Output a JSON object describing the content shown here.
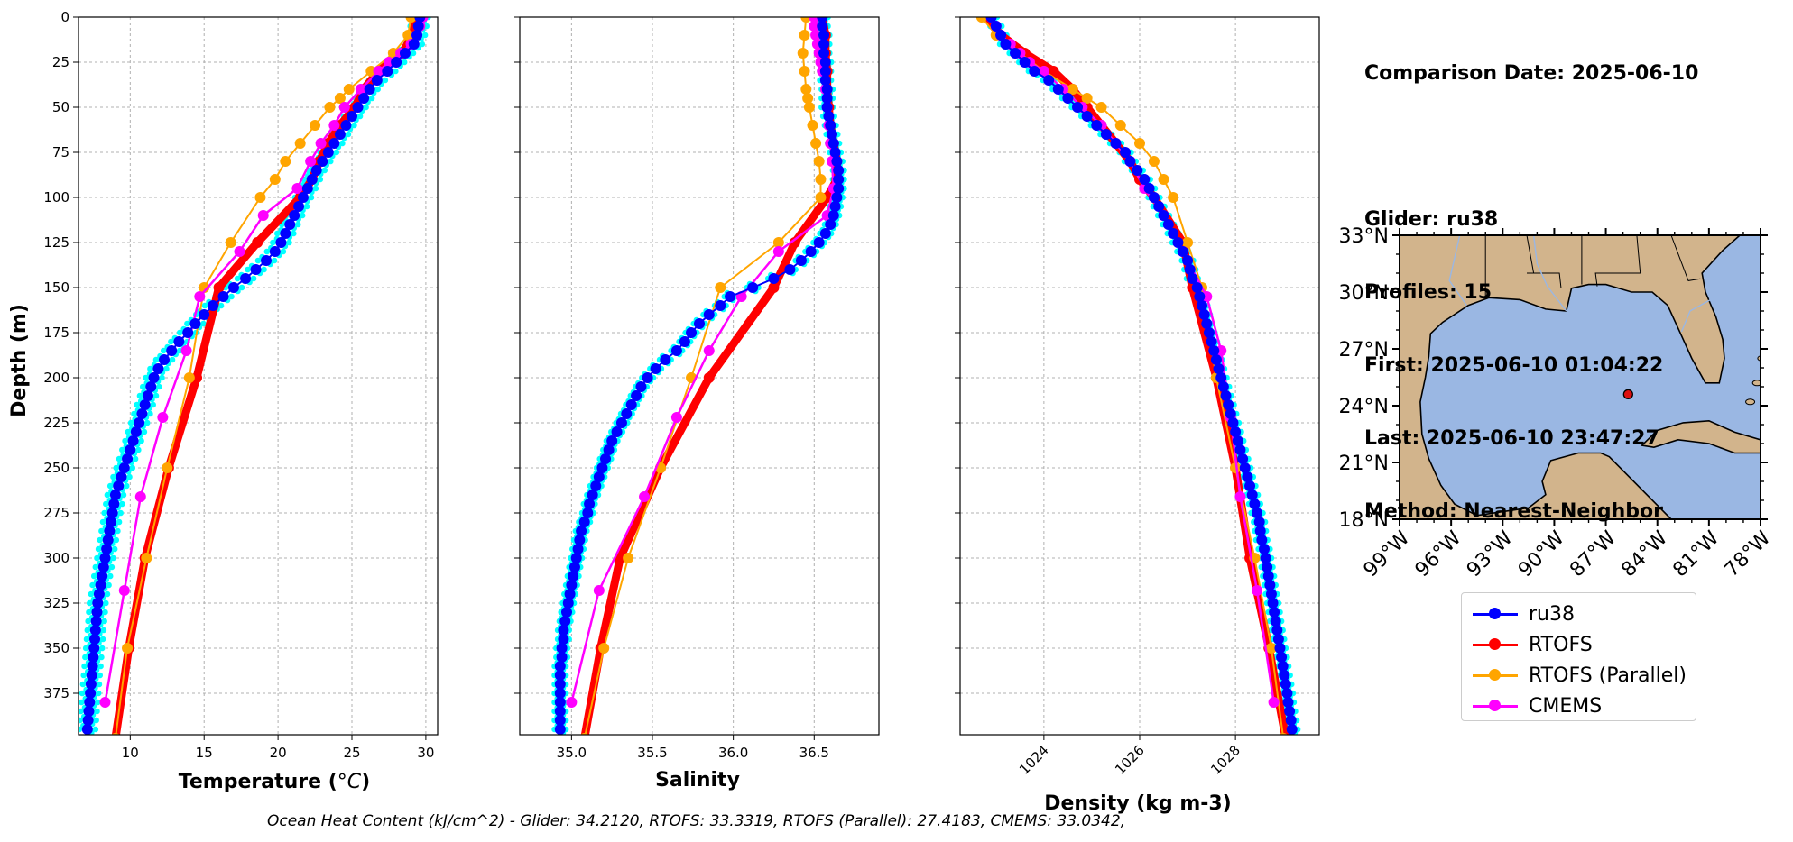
{
  "panels": [
    {
      "id": "temp",
      "xlabel": "Temperature (",
      "xlabel_unit": "°C",
      "xlabel_end": ")",
      "xlim": [
        6.5,
        30.8
      ],
      "xticks": [
        10,
        15,
        20,
        25,
        30
      ],
      "xtick_labels": [
        "10",
        "15",
        "20",
        "25",
        "30"
      ]
    },
    {
      "id": "sal",
      "xlabel": "Salinity",
      "xlim": [
        34.68,
        36.9
      ],
      "xticks": [
        35.0,
        35.5,
        36.0,
        36.5
      ],
      "xtick_labels": [
        "35.0",
        "35.5",
        "36.0",
        "36.5"
      ]
    },
    {
      "id": "dens",
      "xlabel": "Density (kg m-3)",
      "xlim": [
        1022.25,
        1029.75
      ],
      "xticks": [
        1024,
        1026,
        1028
      ],
      "xtick_labels": [
        "1024",
        "1026",
        "1028"
      ]
    }
  ],
  "ylabel": "Depth (m)",
  "ylim": [
    398,
    0
  ],
  "yticks": [
    0,
    25,
    50,
    75,
    100,
    125,
    150,
    175,
    200,
    225,
    250,
    275,
    300,
    325,
    350,
    375
  ],
  "ytick_labels": [
    "0",
    "25",
    "50",
    "75",
    "100",
    "125",
    "150",
    "175",
    "200",
    "225",
    "250",
    "275",
    "300",
    "325",
    "350",
    "375"
  ],
  "info": {
    "line1": "Comparison Date: 2025-06-10",
    "line2": "Glider: ru38",
    "line3": "Profiles: 15",
    "line4": "First: 2025-06-10 01:04:22",
    "line5": "Last: 2025-06-10 23:47:27",
    "line6": "Method: Nearest-Neighbor"
  },
  "map": {
    "lon_ticks": [
      "99°W",
      "96°W",
      "93°W",
      "90°W",
      "87°W",
      "84°W",
      "81°W",
      "78°W"
    ],
    "lat_ticks": [
      "33°N",
      "30°N",
      "27°N",
      "24°N",
      "21°N",
      "18°N"
    ],
    "lon_range": [
      -99,
      -78
    ],
    "lat_range": [
      18,
      33
    ],
    "glider_location": {
      "lon": -85.7,
      "lat": 24.6
    },
    "land_color": "#d2b48c",
    "ocean_color": "#9ab7e3"
  },
  "legend": [
    {
      "label": "ru38",
      "color": "#0000ff"
    },
    {
      "label": "RTOFS",
      "color": "#ff0000"
    },
    {
      "label": "RTOFS (Parallel)",
      "color": "#ffa500"
    },
    {
      "label": "CMEMS",
      "color": "#ff00ff"
    }
  ],
  "footer": "Ocean Heat Content (kJ/cm^2) - Glider: 34.2120,  RTOFS: 33.3319,  RTOFS (Parallel): 27.4183,  CMEMS: 33.0342,",
  "colors": {
    "glider_raw": "#00ffff",
    "glider_mean": "#0000ff",
    "rtofs": "#ff0000",
    "rtofs_parallel": "#ffa500",
    "cmems": "#ff00ff"
  },
  "chart_data": {
    "type": "line",
    "y_axis": "Depth (m)",
    "series": [
      {
        "name": "ru38",
        "depth": [
          0,
          5,
          10,
          15,
          20,
          25,
          30,
          35,
          40,
          45,
          50,
          55,
          60,
          65,
          70,
          75,
          80,
          85,
          90,
          95,
          100,
          105,
          110,
          115,
          120,
          125,
          130,
          135,
          140,
          145,
          150,
          155,
          160,
          165,
          170,
          175,
          180,
          185,
          190,
          195,
          200,
          205,
          210,
          215,
          220,
          225,
          230,
          235,
          240,
          245,
          250,
          255,
          260,
          265,
          270,
          275,
          280,
          285,
          290,
          295,
          300,
          305,
          310,
          315,
          320,
          325,
          330,
          335,
          340,
          345,
          350,
          355,
          360,
          365,
          370,
          375,
          380,
          385,
          390,
          395
        ],
        "temperature": [
          29.6,
          29.5,
          29.4,
          29.2,
          28.6,
          28.0,
          27.4,
          26.7,
          26.2,
          25.8,
          25.4,
          25.0,
          24.6,
          24.2,
          23.8,
          23.4,
          23.0,
          22.6,
          22.3,
          22.0,
          21.7,
          21.4,
          21.1,
          20.8,
          20.5,
          20.2,
          19.8,
          19.2,
          18.5,
          17.8,
          17.0,
          16.3,
          15.6,
          15.0,
          14.4,
          13.9,
          13.3,
          12.8,
          12.3,
          11.9,
          11.6,
          11.4,
          11.2,
          11.0,
          10.8,
          10.6,
          10.4,
          10.2,
          10.0,
          9.8,
          9.6,
          9.4,
          9.2,
          9.0,
          8.9,
          8.8,
          8.7,
          8.6,
          8.5,
          8.4,
          8.3,
          8.2,
          8.1,
          8.0,
          7.9,
          7.8,
          7.75,
          7.7,
          7.65,
          7.6,
          7.55,
          7.5,
          7.45,
          7.4,
          7.35,
          7.3,
          7.25,
          7.2,
          7.15,
          7.1
        ],
        "salinity": [
          36.55,
          36.55,
          36.56,
          36.56,
          36.56,
          36.57,
          36.57,
          36.57,
          36.58,
          36.58,
          36.58,
          36.59,
          36.6,
          36.61,
          36.62,
          36.63,
          36.64,
          36.65,
          36.65,
          36.65,
          36.64,
          36.63,
          36.62,
          36.6,
          36.57,
          36.53,
          36.48,
          36.42,
          36.35,
          36.25,
          36.12,
          35.98,
          35.92,
          35.85,
          35.79,
          35.74,
          35.7,
          35.65,
          35.58,
          35.52,
          35.47,
          35.43,
          35.4,
          35.37,
          35.34,
          35.31,
          35.28,
          35.25,
          35.23,
          35.21,
          35.19,
          35.17,
          35.15,
          35.13,
          35.11,
          35.1,
          35.08,
          35.06,
          35.05,
          35.04,
          35.03,
          35.02,
          35.01,
          35.0,
          34.99,
          34.98,
          34.97,
          34.96,
          34.95,
          34.95,
          34.94,
          34.94,
          34.93,
          34.93,
          34.93,
          34.93,
          34.93,
          34.93,
          34.93,
          34.93
        ],
        "density": [
          1022.9,
          1023.0,
          1023.1,
          1023.2,
          1023.4,
          1023.6,
          1023.8,
          1024.1,
          1024.3,
          1024.5,
          1024.7,
          1024.9,
          1025.1,
          1025.3,
          1025.5,
          1025.7,
          1025.8,
          1025.95,
          1026.1,
          1026.2,
          1026.3,
          1026.4,
          1026.5,
          1026.6,
          1026.7,
          1026.8,
          1026.9,
          1027.0,
          1027.05,
          1027.1,
          1027.2,
          1027.25,
          1027.3,
          1027.35,
          1027.4,
          1027.45,
          1027.5,
          1027.55,
          1027.6,
          1027.65,
          1027.7,
          1027.75,
          1027.8,
          1027.85,
          1027.9,
          1027.95,
          1028.0,
          1028.05,
          1028.1,
          1028.15,
          1028.2,
          1028.25,
          1028.3,
          1028.35,
          1028.4,
          1028.45,
          1028.5,
          1028.52,
          1028.55,
          1028.6,
          1028.63,
          1028.66,
          1028.69,
          1028.72,
          1028.75,
          1028.78,
          1028.81,
          1028.84,
          1028.87,
          1028.9,
          1028.93,
          1028.96,
          1028.99,
          1029.02,
          1029.05,
          1029.08,
          1029.1,
          1029.13,
          1029.16,
          1029.18
        ]
      },
      {
        "name": "RTOFS",
        "depth": [
          0,
          10,
          20,
          30,
          40,
          50,
          60,
          70,
          80,
          90,
          100,
          125,
          150,
          200,
          250,
          300,
          350,
          400
        ],
        "temperature": [
          29.3,
          29.1,
          28.4,
          26.8,
          25.8,
          25.2,
          24.2,
          23.4,
          22.8,
          22.3,
          21.5,
          18.6,
          16.0,
          14.5,
          12.6,
          11.0,
          9.9,
          9.0
        ],
        "salinity": [
          36.55,
          36.57,
          36.57,
          36.58,
          36.58,
          36.59,
          36.6,
          36.62,
          36.64,
          36.64,
          36.58,
          36.38,
          36.25,
          35.85,
          35.55,
          35.3,
          35.18,
          35.08
        ],
        "density": [
          1022.8,
          1023.1,
          1023.6,
          1024.2,
          1024.6,
          1024.9,
          1025.2,
          1025.5,
          1025.8,
          1026.0,
          1026.3,
          1026.9,
          1027.1,
          1027.6,
          1028.0,
          1028.3,
          1028.7,
          1029.05
        ]
      },
      {
        "name": "RTOFS (Parallel)",
        "depth": [
          0,
          10,
          20,
          30,
          40,
          45,
          50,
          60,
          70,
          80,
          90,
          100,
          125,
          150,
          200,
          250,
          300,
          350,
          400
        ],
        "temperature": [
          29.0,
          28.8,
          27.8,
          26.3,
          24.8,
          24.2,
          23.5,
          22.5,
          21.5,
          20.5,
          19.8,
          18.8,
          16.8,
          15.0,
          14.0,
          12.5,
          11.1,
          9.8,
          9.0
        ],
        "salinity": [
          36.45,
          36.44,
          36.43,
          36.44,
          36.45,
          36.46,
          36.47,
          36.49,
          36.51,
          36.53,
          36.54,
          36.54,
          36.28,
          35.92,
          35.74,
          35.55,
          35.35,
          35.2,
          35.08
        ],
        "density": [
          1022.7,
          1023.0,
          1023.5,
          1024.0,
          1024.6,
          1024.9,
          1025.2,
          1025.6,
          1026.0,
          1026.3,
          1026.5,
          1026.7,
          1027.0,
          1027.3,
          1027.6,
          1028.0,
          1028.4,
          1028.75,
          1029.0
        ]
      },
      {
        "name": "CMEMS",
        "depth": [
          0,
          5,
          10,
          15,
          20,
          25,
          30,
          40,
          50,
          60,
          70,
          80,
          95,
          110,
          130,
          155,
          185,
          222,
          266,
          318,
          380
        ],
        "temperature": [
          29.8,
          29.6,
          29.4,
          29.0,
          28.3,
          27.5,
          26.8,
          25.6,
          24.5,
          23.8,
          22.9,
          22.2,
          21.3,
          19.0,
          17.4,
          14.7,
          13.8,
          12.2,
          10.7,
          9.6,
          8.3
        ],
        "salinity": [
          36.5,
          36.5,
          36.51,
          36.52,
          36.53,
          36.54,
          36.55,
          36.57,
          36.58,
          36.59,
          36.6,
          36.61,
          36.62,
          36.58,
          36.28,
          36.05,
          35.85,
          35.65,
          35.45,
          35.17,
          35.0
        ],
        "density": [
          1022.9,
          1023.0,
          1023.1,
          1023.3,
          1023.5,
          1023.7,
          1024.0,
          1024.4,
          1024.8,
          1025.2,
          1025.5,
          1025.8,
          1026.1,
          1026.5,
          1026.9,
          1027.4,
          1027.7,
          1027.9,
          1028.1,
          1028.45,
          1028.8
        ]
      }
    ]
  }
}
